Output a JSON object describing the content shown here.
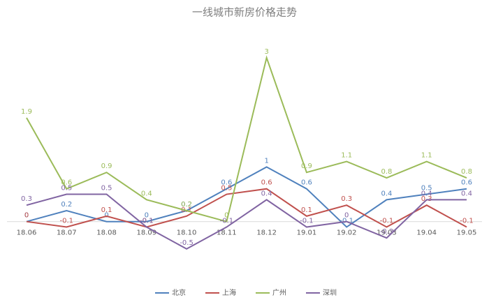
{
  "chart_data": {
    "type": "line",
    "title": "一线城市新房价格走势",
    "categories": [
      "18.06",
      "18.07",
      "18.08",
      "18.09",
      "18.10",
      "18.11",
      "18.12",
      "19.01",
      "19.02",
      "19.03",
      "19.04",
      "19.05"
    ],
    "series": [
      {
        "name": "北京",
        "color": "#4f81bd",
        "values": [
          0,
          0.2,
          0,
          0,
          0.2,
          0.6,
          1,
          0.6,
          -0.1,
          0.4,
          0.5,
          0.6
        ]
      },
      {
        "name": "上海",
        "color": "#c0504d",
        "values": [
          0,
          -0.1,
          0.1,
          -0.1,
          0.1,
          0.5,
          0.6,
          0.1,
          0.3,
          -0.1,
          0.3,
          -0.1
        ]
      },
      {
        "name": "广州",
        "color": "#9bbb59",
        "values": [
          1.9,
          0.6,
          0.9,
          0.4,
          0.2,
          0,
          3,
          0.9,
          1.1,
          0.8,
          1.1,
          0.8
        ]
      },
      {
        "name": "深圳",
        "color": "#8064a2",
        "values": [
          0.3,
          0.5,
          0.5,
          -0.1,
          -0.5,
          -0.1,
          0.4,
          -0.1,
          0,
          -0.3,
          0.4,
          0.4
        ]
      }
    ],
    "ylim": [
      -1,
      3.5
    ],
    "legend": "bottom"
  }
}
